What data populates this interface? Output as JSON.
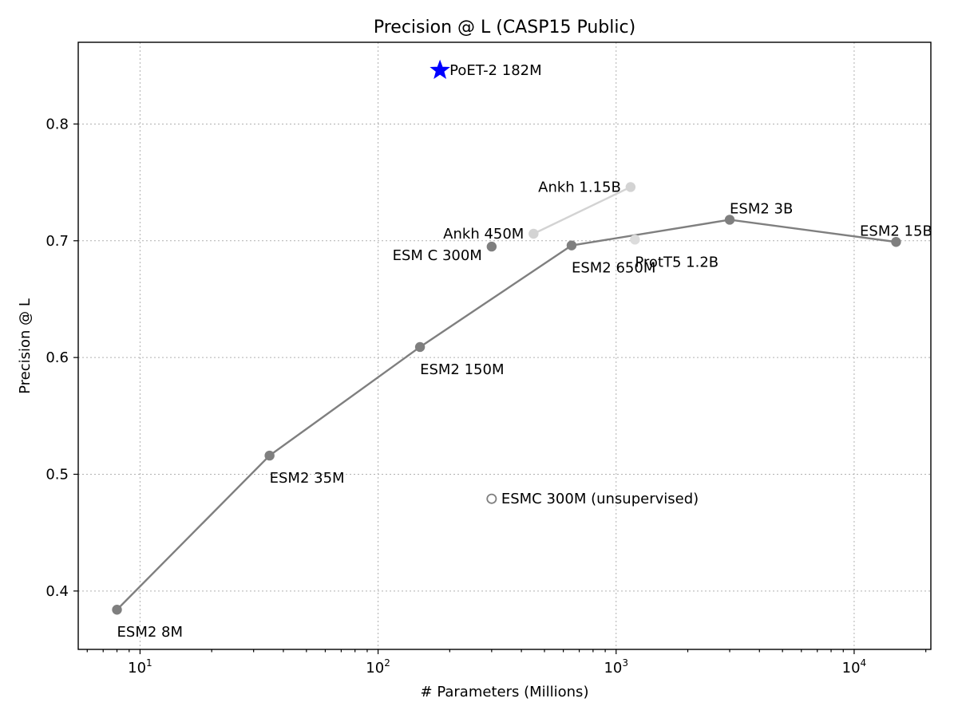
{
  "chart_data": {
    "type": "scatter",
    "title": "Precision @ L (CASP15 Public)",
    "xlabel": "# Parameters (Millions)",
    "ylabel": "Precision @ L",
    "xscale": "log",
    "xlim": [
      5.5,
      21000
    ],
    "ylim": [
      0.35,
      0.87
    ],
    "grid": true,
    "x_ticks": [
      {
        "value": 10,
        "base": "10",
        "exp": "1"
      },
      {
        "value": 100,
        "base": "10",
        "exp": "2"
      },
      {
        "value": 1000,
        "base": "10",
        "exp": "3"
      },
      {
        "value": 10000,
        "base": "10",
        "exp": "4"
      }
    ],
    "y_ticks": [
      {
        "value": 0.4,
        "label": "0.4"
      },
      {
        "value": 0.5,
        "label": "0.5"
      },
      {
        "value": 0.6,
        "label": "0.6"
      },
      {
        "value": 0.7,
        "label": "0.7"
      },
      {
        "value": 0.8,
        "label": "0.8"
      }
    ],
    "series": [
      {
        "key": "esm2",
        "color": "#7f7f7f",
        "marker": "filled-circle",
        "connected": true,
        "points": [
          {
            "x": 8,
            "y": 0.384,
            "label": "ESM2 8M",
            "label_pos": "below-right"
          },
          {
            "x": 35,
            "y": 0.516,
            "label": "ESM2 35M",
            "label_pos": "below-right"
          },
          {
            "x": 150,
            "y": 0.609,
            "label": "ESM2 150M",
            "label_pos": "below-right"
          },
          {
            "x": 650,
            "y": 0.696,
            "label": "ESM2 650M",
            "label_pos": "below-right"
          },
          {
            "x": 3000,
            "y": 0.718,
            "label": "ESM2 3B",
            "label_pos": "above-right"
          },
          {
            "x": 15000,
            "y": 0.699,
            "label": "ESM2 15B",
            "label_pos": "above-center"
          }
        ]
      },
      {
        "key": "ankh",
        "color": "#d3d3d3",
        "marker": "filled-circle",
        "connected": true,
        "points": [
          {
            "x": 450,
            "y": 0.706,
            "label": "Ankh 450M",
            "label_pos": "left"
          },
          {
            "x": 1150,
            "y": 0.746,
            "label": "Ankh 1.15B",
            "label_pos": "left"
          }
        ]
      },
      {
        "key": "prott5",
        "color": "#dcdcdc",
        "marker": "filled-circle",
        "connected": false,
        "points": [
          {
            "x": 1200,
            "y": 0.701,
            "label": "ProtT5 1.2B",
            "label_pos": "below-right"
          }
        ]
      },
      {
        "key": "esmc",
        "color": "#7f7f7f",
        "marker": "filled-circle",
        "connected": false,
        "points": [
          {
            "x": 300,
            "y": 0.695,
            "label": "ESM C 300M",
            "label_pos": "below-left"
          }
        ]
      },
      {
        "key": "esmc-unsup",
        "color": "#7f7f7f",
        "marker": "open-circle",
        "connected": false,
        "points": [
          {
            "x": 300,
            "y": 0.479,
            "label": "ESMC 300M (unsupervised)",
            "label_pos": "right"
          }
        ]
      },
      {
        "key": "poet2",
        "color": "#0000ff",
        "marker": "star",
        "connected": false,
        "points": [
          {
            "x": 182,
            "y": 0.846,
            "label": "PoET-2 182M",
            "label_pos": "right"
          }
        ]
      }
    ]
  }
}
